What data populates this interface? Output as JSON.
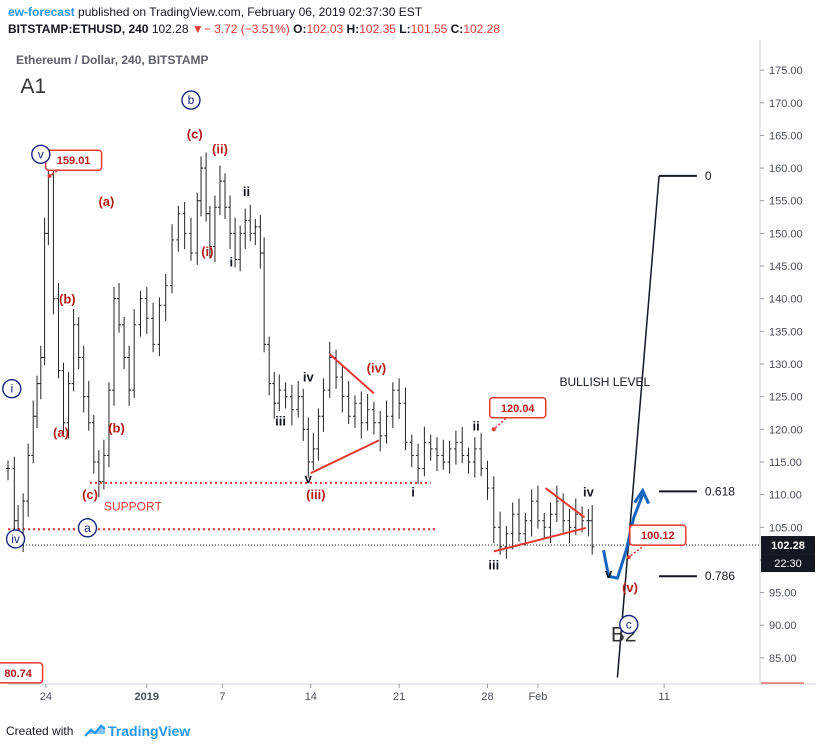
{
  "header": {
    "author": "ew-forecast",
    "published_text": "published on TradingView.com, February 06, 2019 02:37:30 EST",
    "symbol": "BITSTAMP:ETHUSD, 240",
    "last": "102.28",
    "change": "− 3.72 (−3.51%)",
    "o_label": "O:",
    "o_value": "102.03",
    "h_label": "H:",
    "h_value": "102.35",
    "l_label": "L:",
    "l_value": "101.55",
    "c_label": "C:",
    "c_value": "102.28"
  },
  "footer": {
    "created_with": "Created with",
    "brand": "TradingView"
  },
  "colors": {
    "accent": "#2196f3",
    "wave_red": "#b71c1c",
    "count_blue": "#1a237e",
    "line_red": "#e53935",
    "bull_arrow": "#1565c0"
  },
  "chart_data": {
    "type": "line",
    "title": "Ethereum / Dollar, 240, BITSTAMP",
    "grid": false,
    "ylim": [
      81,
      179
    ],
    "y_ticks": [
      "175.00",
      "170.00",
      "165.00",
      "160.00",
      "155.00",
      "150.00",
      "145.00",
      "140.00",
      "135.00",
      "130.00",
      "125.00",
      "120.00",
      "115.00",
      "110.00",
      "105.00",
      "100.00",
      "95.00",
      "90.00",
      "85.00"
    ],
    "y_tick_values": [
      175,
      170,
      165,
      160,
      155,
      150,
      145,
      140,
      135,
      130,
      125,
      120,
      115,
      110,
      105,
      100,
      95,
      90,
      85
    ],
    "x_ticks": [
      {
        "label": "24",
        "x": 0
      },
      {
        "label": "2019",
        "x": 8
      },
      {
        "label": "7",
        "x": 14
      },
      {
        "label": "14",
        "x": 21
      },
      {
        "label": "21",
        "x": 28
      },
      {
        "label": "28",
        "x": 35
      },
      {
        "label": "Feb",
        "x": 39
      },
      {
        "label": "11",
        "x": 49
      }
    ],
    "xlim": [
      -3,
      56.6
    ],
    "price_series": [
      [
        -3,
        114
      ],
      [
        -2.5,
        106
      ],
      [
        -2.2,
        103
      ],
      [
        -1.8,
        109
      ],
      [
        -1.4,
        116
      ],
      [
        -1,
        122
      ],
      [
        -0.7,
        127
      ],
      [
        -0.4,
        131
      ],
      [
        -0.1,
        150
      ],
      [
        0.2,
        159
      ],
      [
        0.6,
        140
      ],
      [
        1,
        129
      ],
      [
        1.4,
        121
      ],
      [
        1.8,
        127
      ],
      [
        2.2,
        136
      ],
      [
        2.6,
        131
      ],
      [
        3,
        125
      ],
      [
        3.4,
        121
      ],
      [
        3.8,
        115
      ],
      [
        4.2,
        112
      ],
      [
        4.6,
        116
      ],
      [
        5,
        126
      ],
      [
        5.4,
        140
      ],
      [
        5.8,
        136
      ],
      [
        6.2,
        131
      ],
      [
        6.6,
        126
      ],
      [
        7,
        136
      ],
      [
        7.5,
        140
      ],
      [
        8,
        137
      ],
      [
        8.5,
        133
      ],
      [
        9,
        139
      ],
      [
        9.5,
        142
      ],
      [
        10,
        149
      ],
      [
        10.5,
        153
      ],
      [
        11,
        150
      ],
      [
        11.5,
        147
      ],
      [
        12,
        155
      ],
      [
        12.3,
        160
      ],
      [
        12.7,
        153
      ],
      [
        13,
        148
      ],
      [
        13.4,
        154
      ],
      [
        13.8,
        158
      ],
      [
        14.2,
        154
      ],
      [
        14.6,
        150
      ],
      [
        15,
        146
      ],
      [
        15.4,
        150
      ],
      [
        15.8,
        152
      ],
      [
        16.2,
        150
      ],
      [
        16.6,
        151
      ],
      [
        17,
        147
      ],
      [
        17.3,
        133
      ],
      [
        17.7,
        127
      ],
      [
        18.1,
        124
      ],
      [
        18.5,
        126
      ],
      [
        19,
        125
      ],
      [
        19.5,
        123
      ],
      [
        20,
        125
      ],
      [
        20.4,
        120
      ],
      [
        20.8,
        115
      ],
      [
        21.2,
        117
      ],
      [
        21.6,
        122
      ],
      [
        22,
        126
      ],
      [
        22.5,
        131
      ],
      [
        23,
        128
      ],
      [
        23.5,
        125
      ],
      [
        24,
        122
      ],
      [
        24.5,
        124
      ],
      [
        25,
        121
      ],
      [
        25.5,
        123
      ],
      [
        26,
        121
      ],
      [
        26.5,
        119
      ],
      [
        27,
        122
      ],
      [
        27.5,
        126
      ],
      [
        28,
        124
      ],
      [
        28.5,
        118
      ],
      [
        29,
        116
      ],
      [
        29.5,
        114
      ],
      [
        30,
        118
      ],
      [
        30.5,
        117
      ],
      [
        31,
        116
      ],
      [
        31.5,
        115
      ],
      [
        32,
        117
      ],
      [
        32.5,
        118
      ],
      [
        33,
        116
      ],
      [
        33.5,
        115
      ],
      [
        34,
        117
      ],
      [
        34.5,
        114
      ],
      [
        35,
        111
      ],
      [
        35.5,
        105
      ],
      [
        36,
        102
      ],
      [
        36.5,
        104
      ],
      [
        37,
        107
      ],
      [
        37.5,
        104
      ],
      [
        38,
        106
      ],
      [
        38.5,
        109
      ],
      [
        39,
        106
      ],
      [
        39.5,
        105
      ],
      [
        40,
        107
      ],
      [
        40.5,
        109
      ],
      [
        41,
        106
      ],
      [
        41.5,
        105
      ],
      [
        42,
        107
      ],
      [
        42.5,
        106
      ],
      [
        43,
        106
      ],
      [
        43.3,
        102
      ]
    ],
    "current_price": 102.28,
    "price_box": "102.28",
    "time_box": "22:30",
    "fib": [
      {
        "label": "0",
        "price": 158.8
      },
      {
        "label": "0.618",
        "price": 110.5
      },
      {
        "label": "0.786",
        "price": 97.5
      }
    ],
    "support_lines": [
      {
        "x1": 3.5,
        "x2": 30.5,
        "price": 111.8
      },
      {
        "x1": -3,
        "x2": 31,
        "price": 104.7
      }
    ],
    "trend_lines": [
      {
        "x1": 22.5,
        "y1": 131.5,
        "x2": 26,
        "y2": 125.5
      },
      {
        "x1": 21,
        "y1": 113.3,
        "x2": 26.4,
        "y2": 118.3
      },
      {
        "x1": 39.6,
        "y1": 111,
        "x2": 42.7,
        "y2": 106.5
      },
      {
        "x1": 35.5,
        "y1": 101.3,
        "x2": 42.8,
        "y2": 104.9
      }
    ],
    "callouts": [
      {
        "text": "159.01",
        "x": 2.2,
        "price": 161.2,
        "tx": 0.3,
        "tp": 158.8
      },
      {
        "text": "120.04",
        "x": 37.4,
        "price": 123.3,
        "tx": 35.5,
        "tp": 120
      },
      {
        "text": "100.12",
        "x": 48.5,
        "price": 103.8,
        "tx": 46.2,
        "tp": 100.4
      },
      {
        "text": "80.74",
        "x": -2.2,
        "price": 82.7,
        "tx": -2.2,
        "tp": 82.7
      }
    ],
    "labels": [
      {
        "text": "A1",
        "x": -1,
        "price": 171.5,
        "kind": "big"
      },
      {
        "text": "B2",
        "x": 45.8,
        "price": 87.5,
        "kind": "big"
      },
      {
        "text": "v",
        "x": -0.4,
        "price": 161.5,
        "kind": "circ-blue"
      },
      {
        "text": "b",
        "x": 11.5,
        "price": 169.8,
        "kind": "circ-blue"
      },
      {
        "text": "a",
        "x": 3.3,
        "price": 104.3,
        "kind": "circ-blue"
      },
      {
        "text": "iv",
        "x": -2.4,
        "price": 102.6,
        "kind": "circ-blue"
      },
      {
        "text": "i",
        "x": -2.7,
        "price": 125.6,
        "kind": "circ-blue"
      },
      {
        "text": "c",
        "x": 46.2,
        "price": 89.5,
        "kind": "circ-blue"
      },
      {
        "text": "(c)",
        "x": 11.8,
        "price": 164.5,
        "kind": "red"
      },
      {
        "text": "(ii)",
        "x": 13.8,
        "price": 162.2,
        "kind": "red"
      },
      {
        "text": "(i)",
        "x": 12.8,
        "price": 146.5,
        "kind": "red"
      },
      {
        "text": "(a)",
        "x": 4.8,
        "price": 154.2,
        "kind": "red"
      },
      {
        "text": "(b)",
        "x": 1.7,
        "price": 139.3,
        "kind": "red"
      },
      {
        "text": "(a)",
        "x": 1.2,
        "price": 118.8,
        "kind": "red"
      },
      {
        "text": "(b)",
        "x": 5.6,
        "price": 119.5,
        "kind": "red"
      },
      {
        "text": "(c)",
        "x": 3.5,
        "price": 109.3,
        "kind": "red"
      },
      {
        "text": "(iv)",
        "x": 26.2,
        "price": 128.7,
        "kind": "red"
      },
      {
        "text": "(iii)",
        "x": 21.4,
        "price": 109.3,
        "kind": "red"
      },
      {
        "text": "(v)",
        "x": 46.3,
        "price": 95.1,
        "kind": "red"
      },
      {
        "text": "ii",
        "x": 15.9,
        "price": 155.7,
        "kind": "black"
      },
      {
        "text": "i",
        "x": 14.7,
        "price": 144.9,
        "kind": "black"
      },
      {
        "text": "iii",
        "x": 18.6,
        "price": 120.6,
        "kind": "black"
      },
      {
        "text": "iv",
        "x": 20.8,
        "price": 127.3,
        "kind": "black"
      },
      {
        "text": "v",
        "x": 20.8,
        "price": 111.8,
        "kind": "black"
      },
      {
        "text": "i",
        "x": 29.1,
        "price": 109.7,
        "kind": "black"
      },
      {
        "text": "ii",
        "x": 34.1,
        "price": 119.8,
        "kind": "black"
      },
      {
        "text": "iii",
        "x": 35.5,
        "price": 98.5,
        "kind": "black"
      },
      {
        "text": "iv",
        "x": 43,
        "price": 109.7,
        "kind": "black"
      },
      {
        "text": "v",
        "x": 44.6,
        "price": 97.2,
        "kind": "black"
      },
      {
        "text": "SUPPORT",
        "x": 6.9,
        "price": 107.6,
        "kind": "support"
      },
      {
        "text": "BULLISH LEVEL",
        "x": 44.3,
        "price": 126.6,
        "kind": "plain"
      }
    ],
    "annotation_lines": [
      {
        "x1": 45.3,
        "y1": 82,
        "x2": 48.6,
        "y2": 158.8
      }
    ]
  }
}
